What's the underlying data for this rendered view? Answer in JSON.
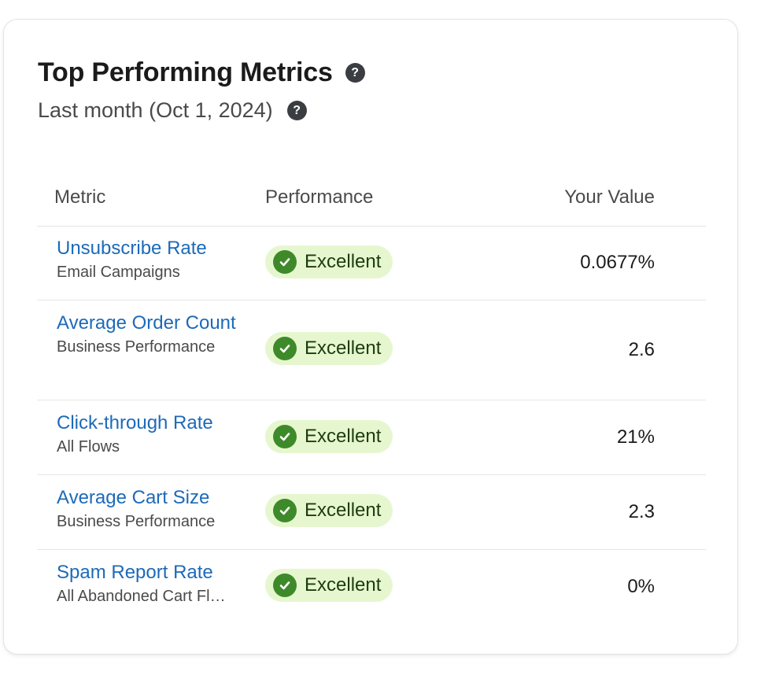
{
  "card": {
    "title": "Top Performing Metrics",
    "subtitle": "Last month (Oct 1, 2024)",
    "help_icon": "question-circle-icon"
  },
  "table": {
    "headers": {
      "metric": "Metric",
      "performance": "Performance",
      "value": "Your Value"
    },
    "rows": [
      {
        "metric": "Unsubscribe Rate",
        "source": "Email Campaigns",
        "performance": "Excellent",
        "value": "0.0677%"
      },
      {
        "metric": "Average Order Count",
        "source": "Business Performance",
        "performance": "Excellent",
        "value": "2.6"
      },
      {
        "metric": "Click-through Rate",
        "source": "All Flows",
        "performance": "Excellent",
        "value": "21%"
      },
      {
        "metric": "Average Cart Size",
        "source": "Business Performance",
        "performance": "Excellent",
        "value": "2.3"
      },
      {
        "metric": "Spam Report Rate",
        "source": "All Abandoned Cart Flows",
        "performance": "Excellent",
        "value": "0%"
      }
    ]
  },
  "colors": {
    "link": "#1d6ab8",
    "badge_bg": "#e6f7cf",
    "check": "#3e8a2a"
  }
}
